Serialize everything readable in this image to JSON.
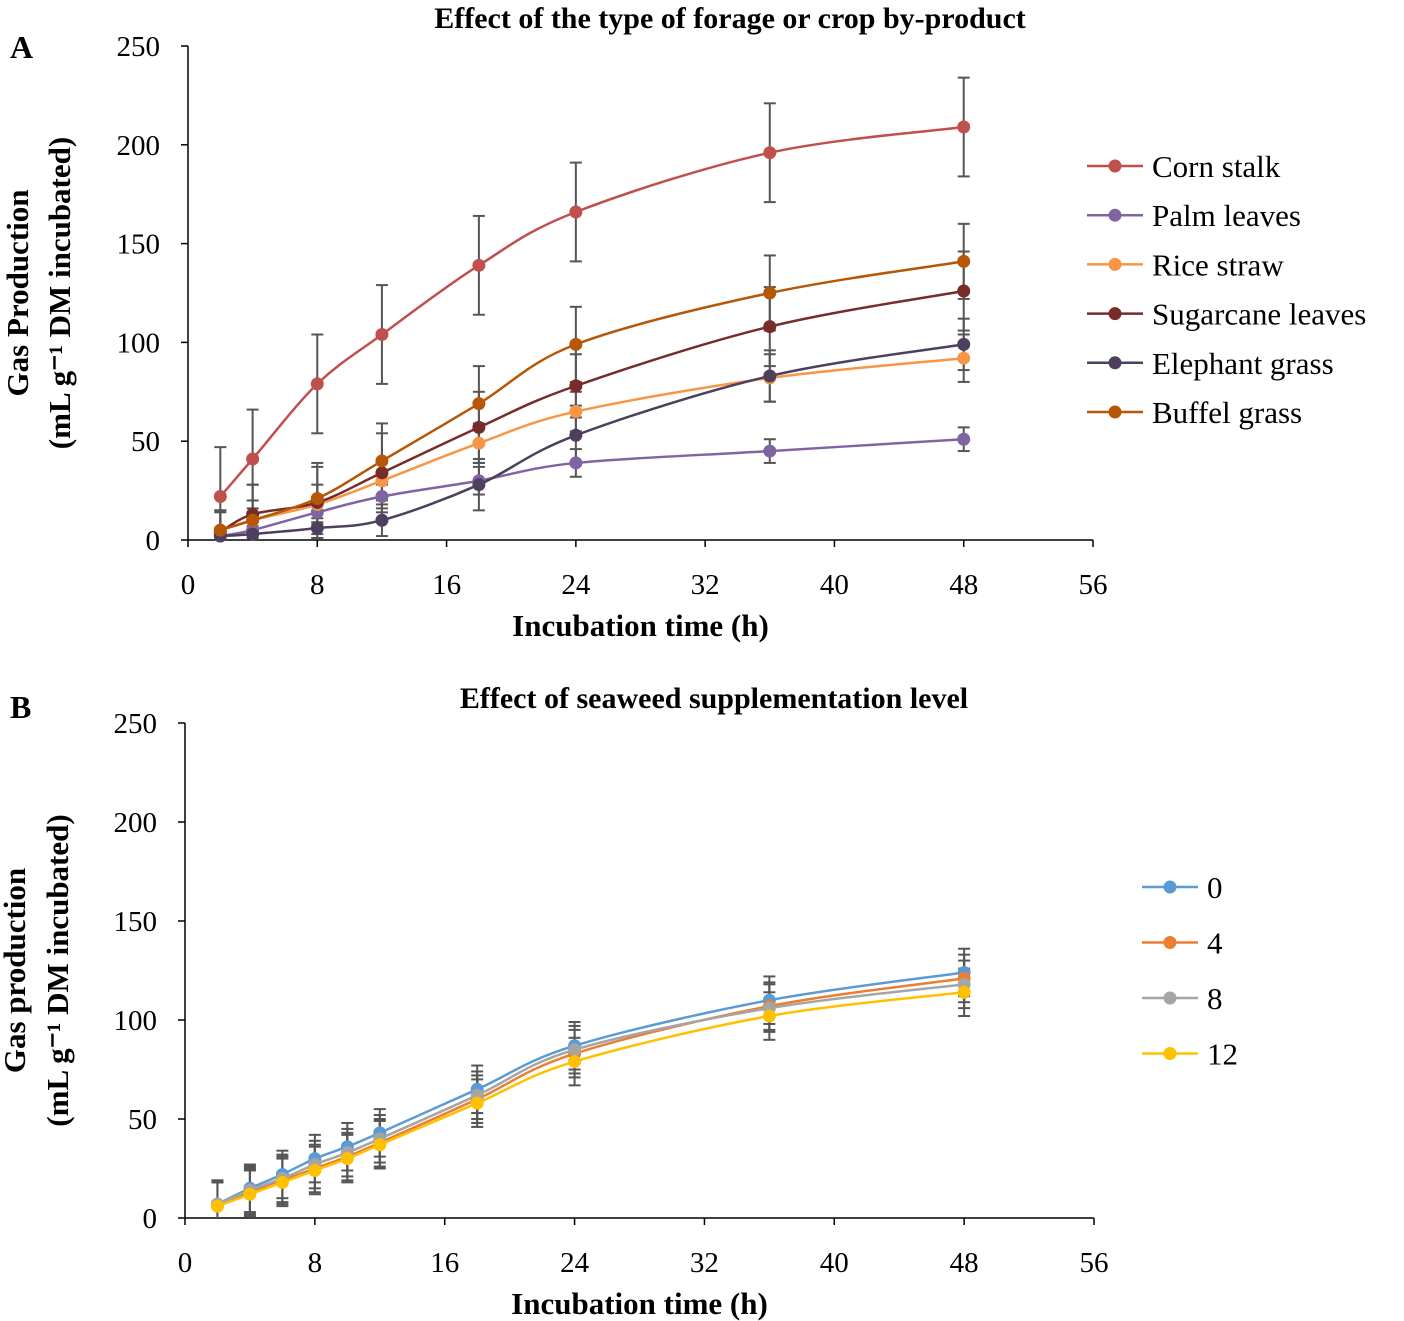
{
  "chart_data": [
    {
      "type": "line",
      "panel": "A",
      "title": "Effect of the type of forage or crop by-product",
      "xlabel": "Incubation time (h)",
      "ylabel": [
        "Gas Production",
        "(mL g⁻¹ DM incubated)"
      ],
      "xlim": [
        0,
        56
      ],
      "ylim": [
        0,
        250
      ],
      "xticks": [
        0,
        8,
        16,
        24,
        32,
        40,
        48,
        56
      ],
      "yticks": [
        0,
        50,
        100,
        150,
        200,
        250
      ],
      "legend_position": "right",
      "x": [
        2,
        4,
        8,
        12,
        18,
        24,
        36,
        48
      ],
      "series": [
        {
          "name": "Corn stalk",
          "color": "#C0504D",
          "values": [
            22,
            41,
            79,
            104,
            139,
            166,
            196,
            209
          ],
          "error": [
            25,
            25,
            25,
            25,
            25,
            25,
            25,
            25
          ]
        },
        {
          "name": "Palm leaves",
          "color": "#8064A2",
          "values": [
            2,
            5,
            14,
            22,
            30,
            39,
            45,
            51
          ],
          "error": [
            3,
            4,
            5,
            6,
            7,
            7,
            6,
            6
          ]
        },
        {
          "name": "Rice straw",
          "color": "#F79646",
          "values": [
            5,
            10,
            18,
            30,
            49,
            65,
            82,
            92
          ],
          "error": [
            10,
            10,
            10,
            10,
            10,
            10,
            12,
            12
          ]
        },
        {
          "name": "Sugarcane leaves",
          "color": "#772C2A",
          "values": [
            4,
            13,
            19,
            34,
            57,
            78,
            108,
            126
          ],
          "error": [
            10,
            15,
            18,
            20,
            18,
            16,
            20,
            20
          ]
        },
        {
          "name": "Elephant grass",
          "color": "#4F3F5F",
          "values": [
            2,
            3,
            6,
            10,
            28,
            53,
            83,
            99
          ],
          "error": [
            3,
            4,
            5,
            8,
            13,
            15,
            13,
            13
          ]
        },
        {
          "name": "Buffel grass",
          "color": "#B65708",
          "values": [
            5,
            10,
            21,
            40,
            69,
            99,
            125,
            141
          ],
          "error": [
            10,
            18,
            18,
            19,
            19,
            19,
            19,
            19
          ]
        }
      ]
    },
    {
      "type": "line",
      "panel": "B",
      "title": "Effect of seaweed supplementation level",
      "xlabel": "Incubation time (h)",
      "ylabel": [
        "Gas production",
        "(mL g⁻¹ DM incubated)"
      ],
      "xlim": [
        0,
        56
      ],
      "ylim": [
        0,
        250
      ],
      "xticks": [
        0,
        8,
        16,
        24,
        32,
        40,
        48,
        56
      ],
      "yticks": [
        0,
        50,
        100,
        150,
        200,
        250
      ],
      "legend_position": "right",
      "x": [
        2,
        4,
        6,
        8,
        10,
        12,
        18,
        24,
        36,
        48
      ],
      "series": [
        {
          "name": "0",
          "color": "#5B9BD5",
          "values": [
            7,
            15,
            22,
            30,
            36,
            43,
            65,
            87,
            110,
            124
          ],
          "error": [
            12,
            12,
            12,
            12,
            12,
            12,
            12,
            12,
            12,
            12
          ]
        },
        {
          "name": "4",
          "color": "#ED7D31",
          "values": [
            6,
            13,
            19,
            25,
            31,
            38,
            60,
            83,
            107,
            121
          ],
          "error": [
            12,
            12,
            12,
            12,
            12,
            12,
            12,
            12,
            12,
            12
          ]
        },
        {
          "name": "8",
          "color": "#A5A5A5",
          "values": [
            7,
            14,
            20,
            27,
            33,
            40,
            62,
            85,
            106,
            118
          ],
          "error": [
            12,
            12,
            12,
            12,
            12,
            12,
            12,
            12,
            12,
            12
          ]
        },
        {
          "name": "12",
          "color": "#FFC000",
          "values": [
            6,
            12,
            18,
            24,
            30,
            37,
            58,
            79,
            102,
            114
          ],
          "error": [
            12,
            12,
            12,
            12,
            12,
            12,
            12,
            12,
            12,
            12
          ]
        }
      ]
    }
  ]
}
